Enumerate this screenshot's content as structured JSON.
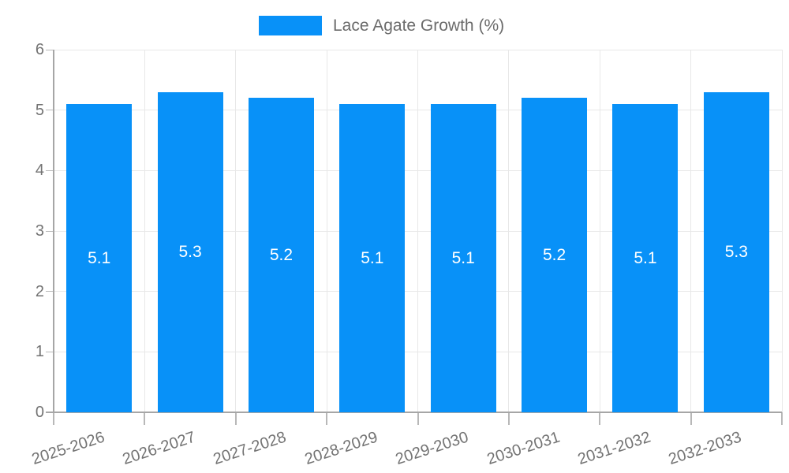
{
  "chart_data": {
    "type": "bar",
    "title": "",
    "legend": {
      "label": "Lace Agate Growth (%)",
      "position": "top"
    },
    "categories": [
      "2025-2026",
      "2026-2027",
      "2027-2028",
      "2028-2029",
      "2029-2030",
      "2030-2031",
      "2031-2032",
      "2032-2033"
    ],
    "series": [
      {
        "name": "Lace Agate Growth (%)",
        "values": [
          5.1,
          5.3,
          5.2,
          5.1,
          5.1,
          5.2,
          5.1,
          5.3
        ]
      }
    ],
    "value_labels": [
      "5.1",
      "5.3",
      "5.2",
      "5.1",
      "5.1",
      "5.2",
      "5.1",
      "5.3"
    ],
    "xlabel": "",
    "ylabel": "",
    "ylim": [
      0,
      6
    ],
    "yticks": [
      "0",
      "1",
      "2",
      "3",
      "4",
      "5",
      "6"
    ],
    "grid": true,
    "legend_position": "top",
    "colors": {
      "bar": "#0891f8",
      "value_label": "#ffffff",
      "axis_text": "#737373",
      "legend_text": "#6b6b6b",
      "grid_line": "#e8e8e8",
      "axis_line": "#a6a6a6",
      "tick_mark": "#b8b8b8"
    }
  }
}
